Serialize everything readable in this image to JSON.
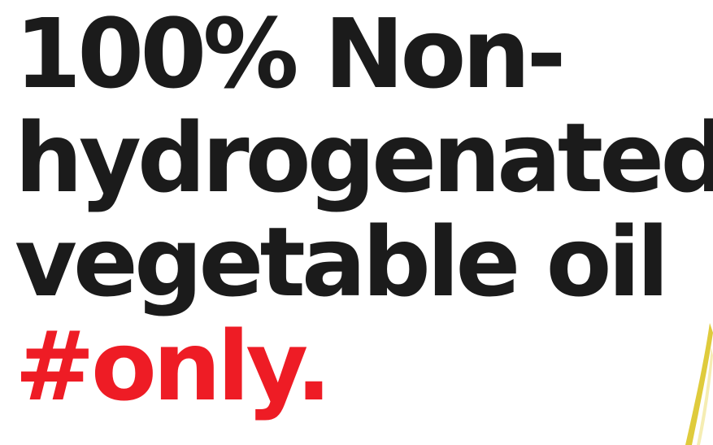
{
  "headline": {
    "lines": [
      "100% Non-",
      "hydrogenated",
      "vegetable oil",
      "#only."
    ]
  },
  "colors": {
    "text": "#1b1b1b",
    "accent": "#ee1c25",
    "background": "#ffffff",
    "oil_streak": "#d9c21a"
  }
}
